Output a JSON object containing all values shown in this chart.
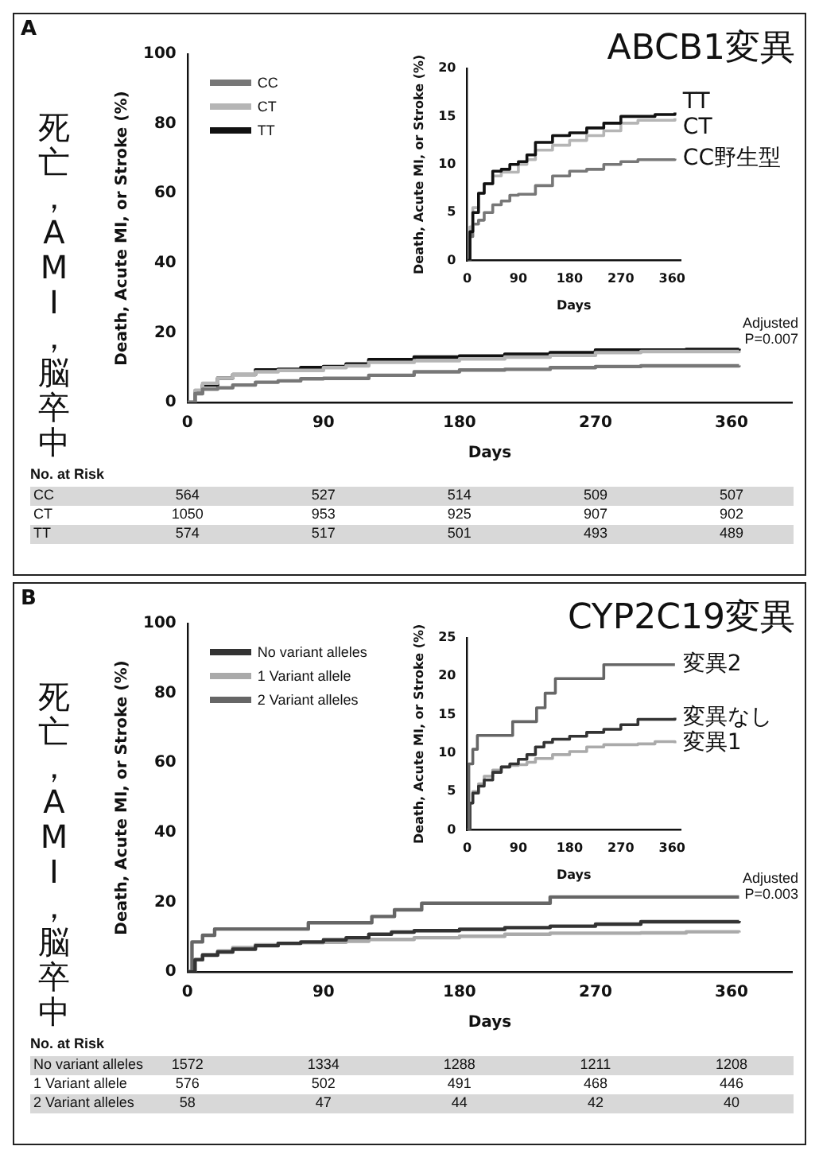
{
  "chart_data": [
    {
      "type": "step",
      "title": "ABCB1変異",
      "xlabel": "Days",
      "ylabel": "Death, Acute MI, or Stroke (%)",
      "xlim": [
        0,
        400
      ],
      "ylim": [
        0,
        100
      ],
      "xticks": [
        0,
        90,
        180,
        270,
        360
      ],
      "yticks": [
        0,
        20,
        40,
        60,
        80,
        100
      ],
      "legend": "top left",
      "annotations": [
        "A",
        "死亡，AMI，脳卒中",
        "Adjusted P=0.007",
        "No. at Risk",
        "CC",
        "564",
        "527",
        "514",
        "509",
        "507",
        "CT",
        "1050",
        "953",
        "925",
        "907",
        "902",
        "TT",
        "574",
        "517",
        "501",
        "493",
        "489"
      ],
      "series": [
        {
          "name": "CC",
          "color": "#777777",
          "x": [
            0,
            5,
            10,
            20,
            30,
            45,
            60,
            75,
            90,
            120,
            150,
            180,
            210,
            240,
            270,
            300,
            330,
            365
          ],
          "values": [
            0,
            2.5,
            3.8,
            4.2,
            5,
            5.8,
            6.2,
            6.8,
            6.9,
            7.8,
            8.8,
            9.3,
            9.5,
            10,
            10.3,
            10.5,
            10.5,
            10.6
          ]
        },
        {
          "name": "CT",
          "color": "#b5b5b5",
          "x": [
            0,
            5,
            10,
            20,
            30,
            45,
            60,
            90,
            105,
            120,
            150,
            180,
            210,
            240,
            270,
            300,
            365
          ],
          "values": [
            0,
            3.5,
            5.5,
            7,
            8,
            8.8,
            9.2,
            10,
            10.5,
            11.5,
            12,
            12.5,
            13,
            13.5,
            14.3,
            14.6,
            14.8
          ]
        },
        {
          "name": "TT",
          "color": "#111111",
          "x": [
            0,
            5,
            10,
            20,
            30,
            45,
            60,
            75,
            90,
            105,
            120,
            150,
            180,
            210,
            240,
            270,
            300,
            330,
            365
          ],
          "values": [
            0,
            3,
            5,
            7,
            8,
            9.3,
            9.5,
            10,
            10.3,
            11,
            12.3,
            13,
            13.3,
            13.8,
            14.3,
            15,
            15,
            15.2,
            15.4
          ]
        }
      ]
    },
    {
      "type": "step",
      "xlabel": "Days",
      "ylabel": "Death, Acute MI, or Stroke (%)",
      "xlim": [
        0,
        375
      ],
      "ylim": [
        0,
        20
      ],
      "xticks": [
        0,
        90,
        180,
        270,
        360
      ],
      "yticks": [
        0,
        5,
        10,
        15,
        20
      ],
      "series": [
        {
          "name": "TT",
          "color": "#111111",
          "x": [
            0,
            5,
            10,
            20,
            30,
            45,
            60,
            75,
            90,
            105,
            120,
            150,
            180,
            210,
            240,
            270,
            300,
            330,
            365
          ],
          "values": [
            0,
            3,
            5,
            7,
            8,
            9.3,
            9.5,
            10,
            10.3,
            11,
            12.3,
            13,
            13.3,
            13.8,
            14.3,
            15,
            15,
            15.2,
            15.4
          ]
        },
        {
          "name": "CT",
          "color": "#b5b5b5",
          "x": [
            0,
            5,
            10,
            20,
            30,
            45,
            60,
            90,
            105,
            120,
            150,
            180,
            210,
            240,
            270,
            300,
            365
          ],
          "values": [
            0,
            3.5,
            5.5,
            7,
            8,
            8.8,
            9.2,
            10,
            10.5,
            11.5,
            12,
            12.5,
            13,
            13.5,
            14.3,
            14.6,
            14.8
          ]
        },
        {
          "name": "CC野生型",
          "color": "#777777",
          "x": [
            0,
            5,
            10,
            20,
            30,
            45,
            60,
            75,
            90,
            120,
            150,
            180,
            210,
            240,
            270,
            300,
            330,
            365
          ],
          "values": [
            0,
            2.5,
            3.8,
            4.2,
            5,
            5.8,
            6.2,
            6.8,
            6.9,
            7.8,
            8.8,
            9.3,
            9.5,
            10,
            10.3,
            10.5,
            10.5,
            10.6
          ]
        }
      ]
    },
    {
      "type": "step",
      "title": "CYP2C19変異",
      "xlabel": "Days",
      "ylabel": "Death, Acute MI, or Stroke (%)",
      "xlim": [
        0,
        400
      ],
      "ylim": [
        0,
        100
      ],
      "xticks": [
        0,
        90,
        180,
        270,
        360
      ],
      "yticks": [
        0,
        20,
        40,
        60,
        80,
        100
      ],
      "legend": "top left",
      "annotations": [
        "B",
        "死亡，AMI，脳卒中",
        "Adjusted P=0.003",
        "No. at Risk",
        "No variant alleles",
        "1572",
        "1334",
        "1288",
        "1211",
        "1208",
        "1 Variant allele",
        "576",
        "502",
        "491",
        "468",
        "446",
        "2 Variant alleles",
        "58",
        "47",
        "44",
        "42",
        "40"
      ],
      "series": [
        {
          "name": "No variant alleles",
          "color": "#333333",
          "x": [
            0,
            5,
            10,
            20,
            30,
            45,
            60,
            75,
            90,
            105,
            120,
            135,
            150,
            180,
            210,
            240,
            270,
            300,
            330,
            365
          ],
          "values": [
            0,
            3.5,
            4.8,
            5.7,
            6.5,
            7.5,
            8.2,
            8.6,
            9.2,
            9.8,
            10.8,
            11.4,
            11.8,
            12.2,
            12.7,
            13.1,
            13.7,
            14.4,
            14.4,
            14.6
          ]
        },
        {
          "name": "1 Variant allele",
          "color": "#aaaaaa",
          "x": [
            0,
            5,
            10,
            20,
            30,
            45,
            60,
            75,
            90,
            105,
            120,
            150,
            180,
            210,
            240,
            270,
            300,
            330,
            365
          ],
          "values": [
            0,
            3.5,
            5,
            6,
            7,
            7.8,
            8.2,
            8.4,
            8.5,
            8.8,
            9.3,
            9.8,
            10.2,
            10.8,
            11.1,
            11.1,
            11.2,
            11.5,
            11.3
          ]
        },
        {
          "name": "2 Variant alleles",
          "color": "#666666",
          "x": [
            0,
            3,
            10,
            18,
            80,
            122,
            137,
            155,
            240,
            365
          ],
          "values": [
            0,
            8.6,
            10.5,
            12.3,
            14.1,
            15.9,
            17.8,
            19.7,
            21.5,
            21.5
          ]
        }
      ]
    },
    {
      "type": "step",
      "xlabel": "Days",
      "ylabel": "Death, Acute MI, or Stroke (%)",
      "xlim": [
        0,
        375
      ],
      "ylim": [
        0,
        25
      ],
      "xticks": [
        0,
        90,
        180,
        270,
        360
      ],
      "yticks": [
        0,
        5,
        10,
        15,
        20,
        25
      ],
      "series": [
        {
          "name": "変異2",
          "color": "#666666",
          "x": [
            0,
            3,
            10,
            18,
            80,
            122,
            137,
            155,
            240,
            365
          ],
          "values": [
            0,
            8.6,
            10.5,
            12.3,
            14.1,
            15.9,
            17.8,
            19.7,
            21.5,
            21.5
          ]
        },
        {
          "name": "変異なし",
          "color": "#333333",
          "x": [
            0,
            5,
            10,
            20,
            30,
            45,
            60,
            75,
            90,
            105,
            120,
            135,
            150,
            180,
            210,
            240,
            270,
            300,
            330,
            365
          ],
          "values": [
            0,
            3.5,
            4.8,
            5.7,
            6.5,
            7.5,
            8.2,
            8.6,
            9.2,
            9.8,
            10.8,
            11.4,
            11.8,
            12.2,
            12.7,
            13.1,
            13.7,
            14.4,
            14.4,
            14.6
          ]
        },
        {
          "name": "変異1",
          "color": "#aaaaaa",
          "x": [
            0,
            5,
            10,
            20,
            30,
            45,
            60,
            75,
            90,
            105,
            120,
            150,
            180,
            210,
            240,
            270,
            300,
            330,
            365
          ],
          "values": [
            0,
            3.5,
            5,
            6,
            7,
            7.8,
            8.2,
            8.4,
            8.5,
            8.8,
            9.3,
            9.8,
            10.2,
            10.8,
            11.1,
            11.1,
            11.2,
            11.5,
            11.3
          ]
        }
      ]
    }
  ]
}
